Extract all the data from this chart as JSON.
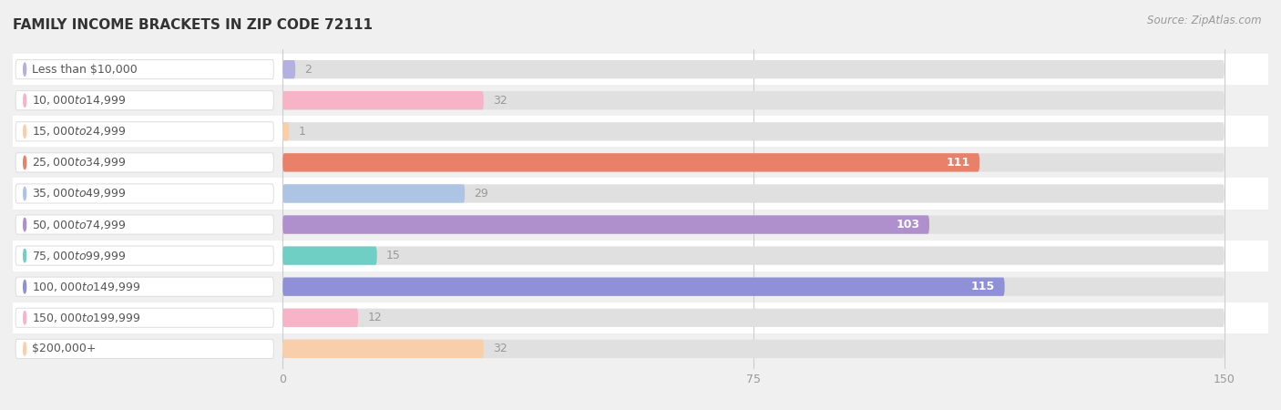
{
  "title": "FAMILY INCOME BRACKETS IN ZIP CODE 72111",
  "source": "Source: ZipAtlas.com",
  "categories": [
    "Less than $10,000",
    "$10,000 to $14,999",
    "$15,000 to $24,999",
    "$25,000 to $34,999",
    "$35,000 to $49,999",
    "$50,000 to $74,999",
    "$75,000 to $99,999",
    "$100,000 to $149,999",
    "$150,000 to $199,999",
    "$200,000+"
  ],
  "values": [
    2,
    32,
    1,
    111,
    29,
    103,
    15,
    115,
    12,
    32
  ],
  "bar_colors": [
    "#b5b0e2",
    "#f7b3c8",
    "#f8cfaa",
    "#e8806a",
    "#adc4e4",
    "#b090cc",
    "#70cfc5",
    "#9090d8",
    "#f7b3c8",
    "#f8cfaa"
  ],
  "label_colors": {
    "inside": "#ffffff",
    "outside": "#999999"
  },
  "data_max": 150,
  "xticks": [
    0,
    75,
    150
  ],
  "bg_color": "#f0f0f0",
  "row_bg_even": "#ffffff",
  "row_bg_odd": "#f0f0f0",
  "title_fontsize": 11,
  "label_fontsize": 9,
  "value_fontsize": 9,
  "tick_fontsize": 9,
  "source_fontsize": 8.5,
  "inside_label_threshold": 60,
  "bar_height": 0.58,
  "label_pill_color": "#ffffff",
  "label_pill_edge": "#dddddd",
  "label_text_color": "#555555",
  "grid_color": "#cccccc"
}
